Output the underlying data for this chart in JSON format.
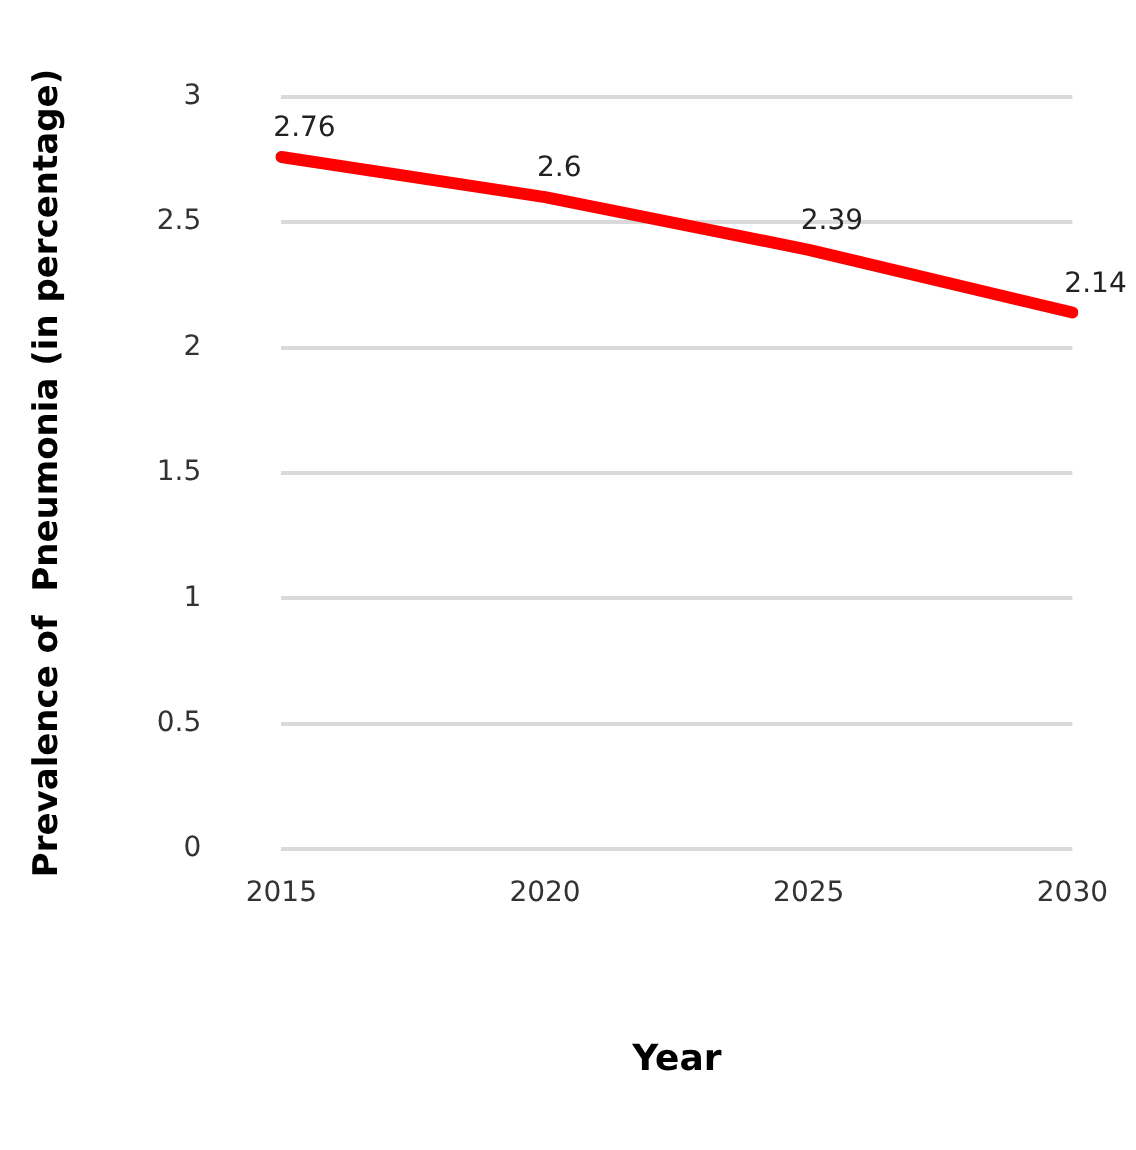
{
  "chart_data": {
    "type": "line",
    "xlabel": "Year",
    "ylabel": "Prevalence of  Pneumonia (in percentage)",
    "categories": [
      "2015",
      "2020",
      "2025",
      "2030"
    ],
    "series": [
      {
        "color": "#ff0000",
        "values": [
          2.76,
          2.6,
          2.39,
          2.14
        ]
      }
    ],
    "ylim": [
      0,
      3
    ],
    "yticks": [
      0,
      0.5,
      1,
      1.5,
      2,
      2.5,
      3
    ],
    "grid": "y",
    "legend": false,
    "marker": "none",
    "line_style": "solid",
    "data_labels": true
  }
}
